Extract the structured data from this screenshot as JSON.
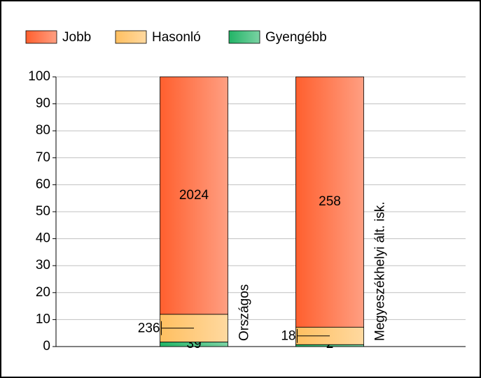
{
  "chart_data": {
    "type": "stacked_percent_bar",
    "categories": [
      "Országos",
      "Megyeszékhelyi ált. isk."
    ],
    "series": [
      {
        "name": "Gyengébb",
        "color": "#22b466",
        "values": [
          1.7,
          0.72
        ],
        "counts": [
          39,
          2
        ]
      },
      {
        "name": "Hasonló",
        "color": "#ffbf60",
        "values": [
          10.27,
          6.47
        ],
        "counts": [
          236,
          18
        ]
      },
      {
        "name": "Jobb",
        "color": "#ff5f2e",
        "values": [
          88.04,
          92.81
        ],
        "counts": [
          2024,
          258
        ]
      }
    ],
    "legend_order": [
      2,
      1,
      0
    ],
    "ylim": [
      0,
      100
    ],
    "yticks": [
      0,
      10,
      20,
      30,
      40,
      50,
      60,
      70,
      80,
      90,
      100
    ],
    "grid": true,
    "legend": "top"
  }
}
